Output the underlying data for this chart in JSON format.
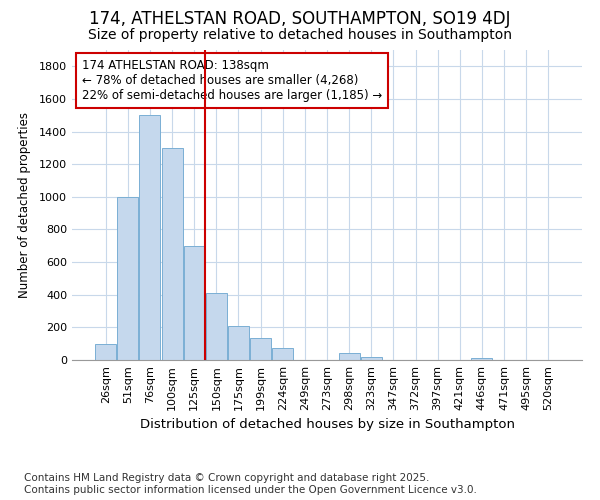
{
  "title1": "174, ATHELSTAN ROAD, SOUTHAMPTON, SO19 4DJ",
  "title2": "Size of property relative to detached houses in Southampton",
  "xlabel": "Distribution of detached houses by size in Southampton",
  "ylabel": "Number of detached properties",
  "categories": [
    "26sqm",
    "51sqm",
    "76sqm",
    "100sqm",
    "125sqm",
    "150sqm",
    "175sqm",
    "199sqm",
    "224sqm",
    "249sqm",
    "273sqm",
    "298sqm",
    "323sqm",
    "347sqm",
    "372sqm",
    "397sqm",
    "421sqm",
    "446sqm",
    "471sqm",
    "495sqm",
    "520sqm"
  ],
  "values": [
    100,
    1000,
    1500,
    1300,
    700,
    410,
    210,
    135,
    75,
    0,
    0,
    40,
    20,
    0,
    0,
    0,
    0,
    15,
    0,
    0,
    0
  ],
  "bar_color": "#c5d8ed",
  "bar_edge_color": "#7aafd4",
  "vline_x": 4.5,
  "vline_color": "#cc0000",
  "annotation_text": "174 ATHELSTAN ROAD: 138sqm\n← 78% of detached houses are smaller (4,268)\n22% of semi-detached houses are larger (1,185) →",
  "annotation_box_color": "white",
  "annotation_box_edge": "#cc0000",
  "ylim": [
    0,
    1900
  ],
  "yticks": [
    0,
    200,
    400,
    600,
    800,
    1000,
    1200,
    1400,
    1600,
    1800
  ],
  "bg_color": "#ffffff",
  "plot_bg_color": "#ffffff",
  "grid_color": "#c8d8ea",
  "footer": "Contains HM Land Registry data © Crown copyright and database right 2025.\nContains public sector information licensed under the Open Government Licence v3.0.",
  "title1_fontsize": 12,
  "title2_fontsize": 10,
  "xlabel_fontsize": 9.5,
  "ylabel_fontsize": 8.5,
  "tick_fontsize": 8,
  "annot_fontsize": 8.5,
  "footer_fontsize": 7.5
}
